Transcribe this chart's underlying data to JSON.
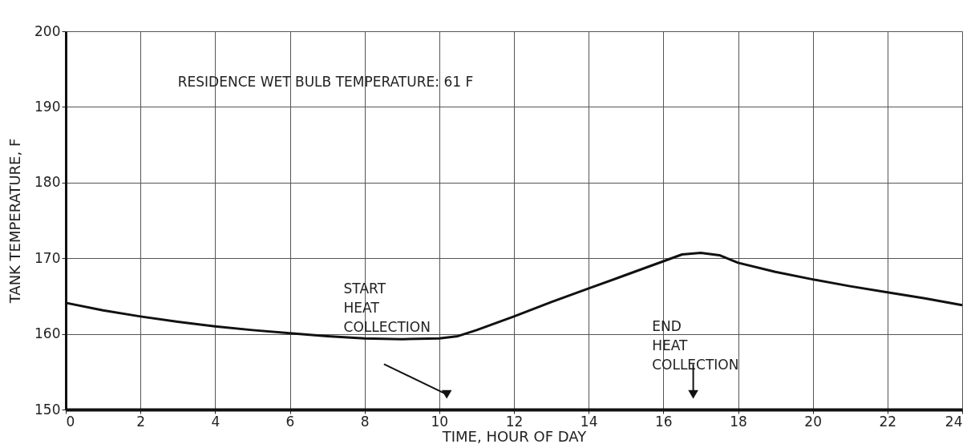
{
  "chart_data": {
    "type": "line",
    "xlabel": "TIME, HOUR OF DAY",
    "ylabel": "TANK TEMPERATURE, F",
    "x": [
      0,
      1,
      2,
      3,
      4,
      5,
      6,
      7,
      8,
      9,
      10,
      10.5,
      11,
      12,
      13,
      14,
      15,
      16,
      16.5,
      17,
      17.5,
      18,
      19,
      20,
      21,
      22,
      23,
      24
    ],
    "series": [
      {
        "color": "#111111",
        "values": [
          164.1,
          163.1,
          162.3,
          161.6,
          161,
          160.5,
          160.1,
          159.7,
          159.4,
          159.3,
          159.4,
          159.7,
          160.5,
          162.3,
          164.2,
          166,
          167.8,
          169.6,
          170.5,
          170.7,
          170.4,
          169.4,
          168.2,
          167.2,
          166.3,
          165.5,
          164.7,
          163.8
        ]
      }
    ],
    "xlim": [
      0,
      24
    ],
    "xticks": [
      0,
      2,
      4,
      6,
      8,
      10,
      12,
      14,
      16,
      18,
      20,
      22,
      24
    ],
    "ylim": [
      150,
      200
    ],
    "yticks": [
      150,
      160,
      170,
      180,
      190,
      200
    ],
    "grid": true,
    "marker": "none",
    "line_style": "solid",
    "annotations": [
      "RESIDENCE WET BULB TEMPERATURE:  61 F",
      "START\nHEAT\nCOLLECTION",
      "END\nHEAT\nCOLLECTION"
    ]
  }
}
